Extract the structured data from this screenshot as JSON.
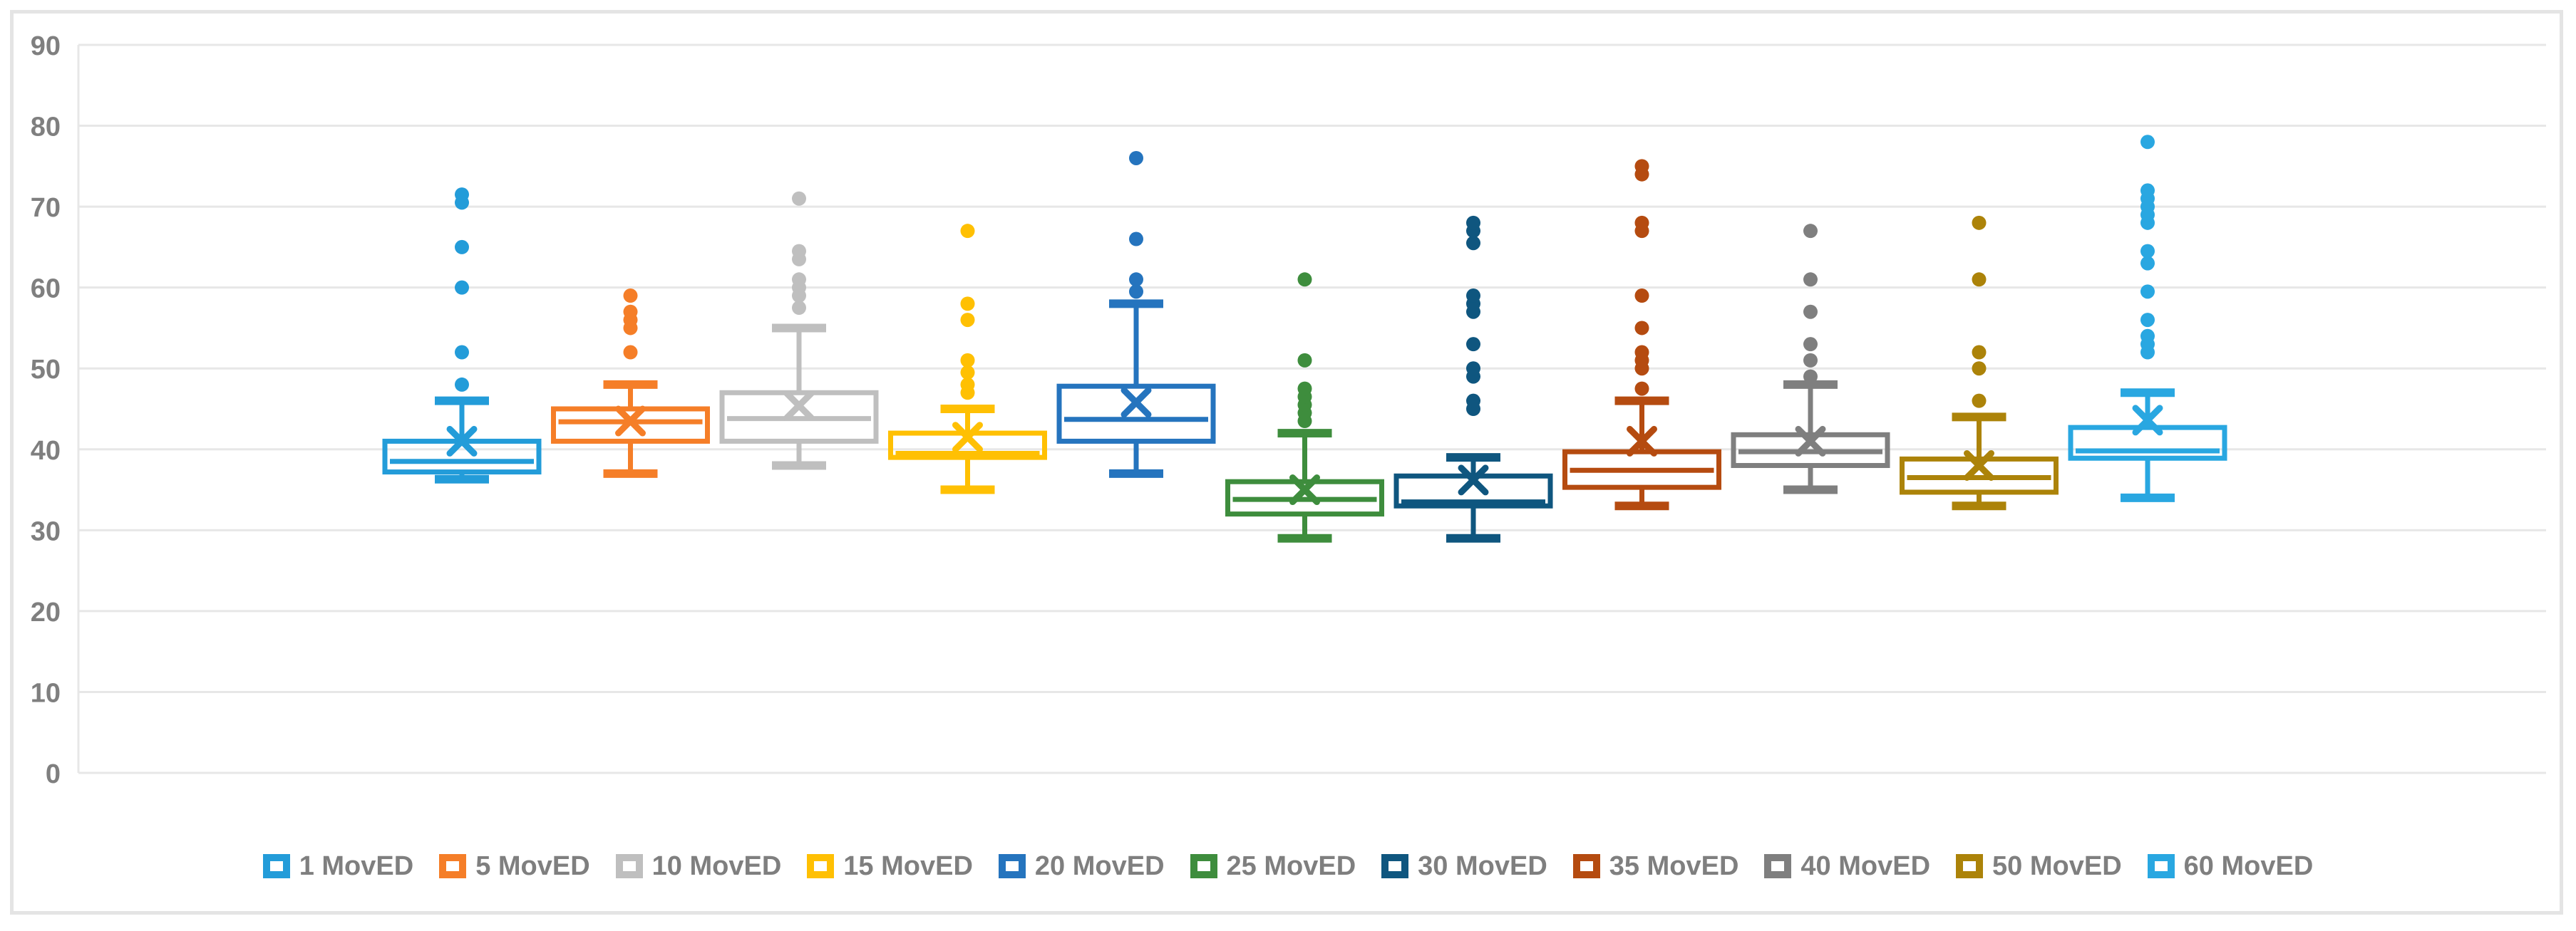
{
  "colors": {
    "background": "#FFFFFF",
    "frame": "#E4E4E4",
    "gridline": "#E7E7E7",
    "axis_text": "#7F7F7F",
    "legend_text": "#7F7F7F"
  },
  "chart_data": {
    "type": "box",
    "title": "",
    "xlabel": "",
    "ylabel": "",
    "grid": true,
    "legend_position": "bottom",
    "y_axis": {
      "min": 0,
      "max": 90,
      "step": 10,
      "ticks": [
        90,
        80,
        70,
        60,
        50,
        40,
        30,
        20,
        10,
        0
      ]
    },
    "categories": [
      "1 MovED",
      "5 MovED",
      "10 MovED",
      "15 MovED",
      "20 MovED",
      "25 MovED",
      "30 MovED",
      "35 MovED",
      "40 MovED",
      "50 MovED",
      "60 MovED"
    ],
    "series": [
      {
        "name": "1 MovED",
        "color": "#239CD9",
        "whisker_low": 36.3,
        "q1": 37.2,
        "median": 38.5,
        "q3": 41.0,
        "whisker_high": 46.0,
        "mean": 41.0,
        "outliers": [
          48,
          52,
          60,
          65,
          70.5,
          71.5
        ]
      },
      {
        "name": "5 MovED",
        "color": "#F57E28",
        "whisker_low": 37.0,
        "q1": 41.0,
        "median": 43.4,
        "q3": 45.0,
        "whisker_high": 48.0,
        "mean": 43.5,
        "outliers": [
          52,
          55,
          56,
          57,
          59
        ]
      },
      {
        "name": "10 MovED",
        "color": "#BFBFBF",
        "whisker_low": 38.0,
        "q1": 41.0,
        "median": 43.8,
        "q3": 47.0,
        "whisker_high": 55.0,
        "mean": 45.4,
        "outliers": [
          57.5,
          59,
          60,
          61,
          63.5,
          64.5,
          71
        ]
      },
      {
        "name": "15 MovED",
        "color": "#FFC003",
        "whisker_low": 35.0,
        "q1": 39.0,
        "median": 39.5,
        "q3": 42.0,
        "whisker_high": 45.0,
        "mean": 41.5,
        "outliers": [
          47,
          48,
          49.5,
          51,
          56,
          58,
          67
        ]
      },
      {
        "name": "20 MovED",
        "color": "#2574BE",
        "whisker_low": 37.0,
        "q1": 41.0,
        "median": 43.7,
        "q3": 47.8,
        "whisker_high": 58.0,
        "mean": 45.8,
        "outliers": [
          59.5,
          61,
          66,
          76
        ]
      },
      {
        "name": "25 MovED",
        "color": "#3E8D3D",
        "whisker_low": 29.0,
        "q1": 32.0,
        "median": 33.8,
        "q3": 36.0,
        "whisker_high": 42.0,
        "mean": 35.0,
        "outliers": [
          43.5,
          44.5,
          45.5,
          46.5,
          47.5,
          51,
          61
        ]
      },
      {
        "name": "30 MovED",
        "color": "#0F567F",
        "whisker_low": 29.0,
        "q1": 33.0,
        "median": 33.5,
        "q3": 36.7,
        "whisker_high": 39.0,
        "mean": 36.2,
        "outliers": [
          45,
          46,
          49,
          50,
          53,
          57,
          58,
          59,
          65.5,
          67,
          68
        ]
      },
      {
        "name": "35 MovED",
        "color": "#B54B10",
        "whisker_low": 33.0,
        "q1": 35.3,
        "median": 37.4,
        "q3": 39.7,
        "whisker_high": 46.0,
        "mean": 41.0,
        "outliers": [
          47.5,
          50,
          51,
          52,
          55,
          59,
          67,
          68,
          74,
          75
        ]
      },
      {
        "name": "40 MovED",
        "color": "#7F7F7F",
        "whisker_low": 35.0,
        "q1": 38.0,
        "median": 39.7,
        "q3": 41.8,
        "whisker_high": 48.0,
        "mean": 41.0,
        "outliers": [
          49,
          51,
          53,
          57,
          61,
          67
        ]
      },
      {
        "name": "50 MovED",
        "color": "#AC8309",
        "whisker_low": 33.0,
        "q1": 34.7,
        "median": 36.5,
        "q3": 38.8,
        "whisker_high": 44.0,
        "mean": 38.0,
        "outliers": [
          46,
          50,
          52,
          61,
          68
        ]
      },
      {
        "name": "60 MovED",
        "color": "#29A7E1",
        "whisker_low": 34.0,
        "q1": 38.9,
        "median": 39.8,
        "q3": 42.7,
        "whisker_high": 47.0,
        "mean": 43.6,
        "outliers": [
          52,
          53,
          54,
          56,
          59.5,
          63,
          64.5,
          68,
          69,
          70,
          71,
          72,
          78
        ]
      }
    ]
  }
}
